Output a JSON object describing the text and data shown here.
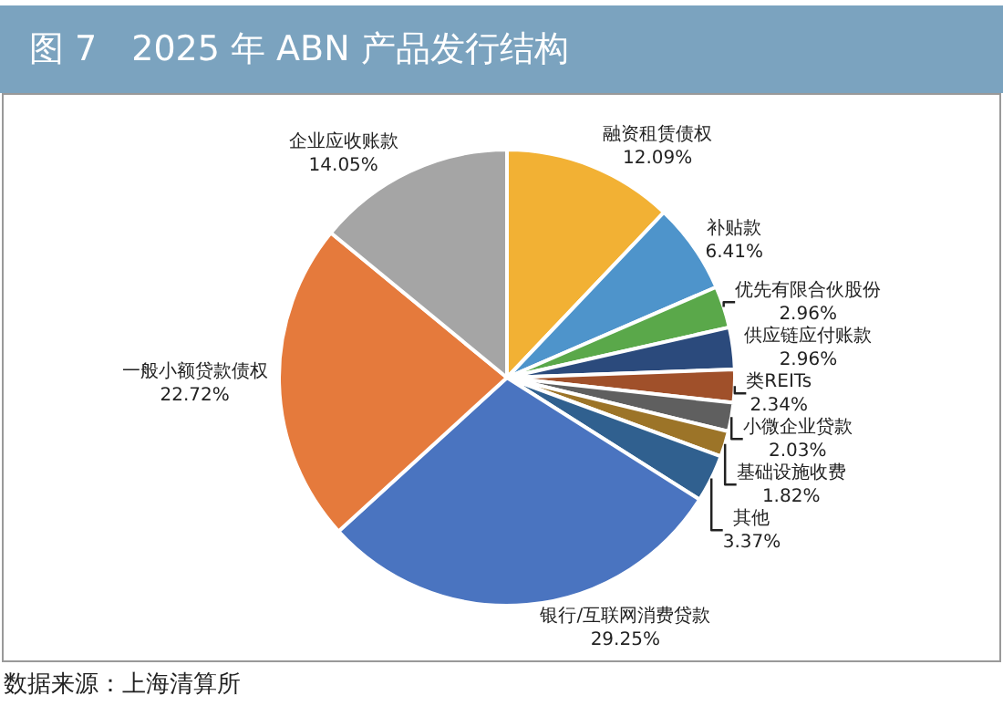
{
  "chart_data": {
    "type": "pie",
    "title": "图 7　2025 年 ABN 产品发行结构",
    "categories": [
      "融资租赁债权",
      "补贴款",
      "优先有限合伙股份",
      "供应链应付账款",
      "类REITs",
      "小微企业贷款",
      "基础设施收费",
      "其他",
      "银行/互联网消费贷款",
      "一般小额贷款债权",
      "企业应收账款"
    ],
    "values": [
      12.09,
      6.41,
      2.96,
      2.96,
      2.34,
      2.03,
      1.82,
      3.37,
      29.25,
      22.72,
      14.05
    ],
    "value_labels": [
      "12.09%",
      "6.41%",
      "2.96%",
      "2.96%",
      "2.34%",
      "2.03%",
      "1.82%",
      "3.37%",
      "29.25%",
      "22.72%",
      "14.05%"
    ],
    "colors": [
      "#f2b134",
      "#4e94cb",
      "#5aa84a",
      "#2b4a7c",
      "#a0502a",
      "#5f5f5f",
      "#9c7428",
      "#30608f",
      "#4a74c0",
      "#e57a3c",
      "#a5a5a5"
    ],
    "legend": false,
    "annotations": [
      "数据来源：上海清算所"
    ]
  }
}
